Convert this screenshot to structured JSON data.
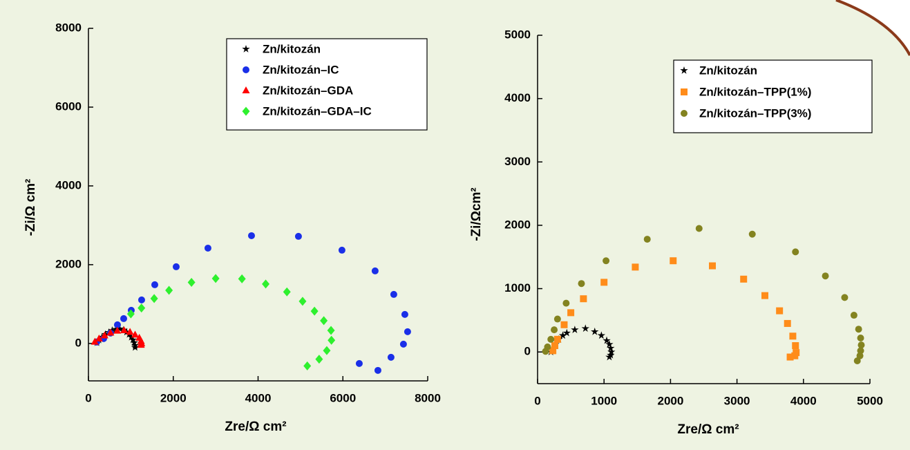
{
  "chart_data": [
    {
      "type": "scatter",
      "xlabel": "Zre/Ω cm²",
      "ylabel": "-Zi/Ω cm²",
      "xlim": [
        0,
        8000
      ],
      "ylim": [
        -950,
        8000
      ],
      "xticks": [
        0,
        2000,
        4000,
        6000,
        8000
      ],
      "yticks": [
        0,
        2000,
        4000,
        6000,
        8000
      ],
      "legend": "upper right",
      "series": [
        {
          "name": "Zn/kitozán",
          "color": "#000000",
          "marker": "star",
          "x": [
            200,
            250,
            320,
            400,
            480,
            560,
            650,
            740,
            830,
            900,
            960,
            1010,
            1050,
            1080,
            1100,
            1100
          ],
          "values": [
            20,
            90,
            160,
            230,
            280,
            330,
            360,
            370,
            340,
            290,
            230,
            160,
            90,
            20,
            -50,
            -100
          ]
        },
        {
          "name": "Zn/kitozán–IC",
          "color": "#1a2fe8",
          "marker": "circle",
          "x": [
            195,
            358,
            521,
            684,
            831,
            1010,
            1254,
            1564,
            2069,
            2818,
            3845,
            4952,
            5978,
            6760,
            7200,
            7461,
            7526,
            7428,
            7135,
            6826,
            6386
          ],
          "values": [
            35,
            123,
            263,
            474,
            631,
            842,
            1105,
            1491,
            1947,
            2420,
            2736,
            2719,
            2368,
            1842,
            1245,
            737,
            298,
            -18,
            -351,
            -684,
            -509
          ]
        },
        {
          "name": "Zn/kitozán–GDA",
          "color": "#ff0000",
          "marker": "triangle",
          "x": [
            150,
            250,
            380,
            520,
            680,
            840,
            980,
            1100,
            1200,
            1240,
            1250,
            1240
          ],
          "values": [
            40,
            120,
            200,
            270,
            320,
            330,
            290,
            220,
            140,
            60,
            0,
            -40
          ]
        },
        {
          "name": "Zn/kitozán–GDA–IC",
          "color": "#2ef02e",
          "marker": "diamond",
          "x": [
            1000,
            1250,
            1550,
            1900,
            2430,
            3000,
            3620,
            4180,
            4680,
            5050,
            5330,
            5550,
            5720,
            5730,
            5620,
            5440,
            5160
          ],
          "values": [
            750,
            900,
            1140,
            1350,
            1550,
            1650,
            1640,
            1510,
            1310,
            1070,
            820,
            580,
            330,
            80,
            -180,
            -400,
            -570
          ]
        }
      ]
    },
    {
      "type": "scatter",
      "xlabel": "Zre/Ω cm²",
      "ylabel": "-Zi/Ωcm²",
      "xlim": [
        0,
        5000
      ],
      "ylim": [
        -500,
        5000
      ],
      "xticks": [
        0,
        1000,
        2000,
        3000,
        4000,
        5000
      ],
      "yticks": [
        0,
        1000,
        2000,
        3000,
        4000,
        5000
      ],
      "legend": "upper right",
      "series": [
        {
          "name": "Zn/kitozán",
          "color": "#000000",
          "marker": "star",
          "x": [
            200,
            230,
            270,
            320,
            380,
            440,
            560,
            720,
            860,
            960,
            1040,
            1080,
            1100,
            1110,
            1100,
            1080
          ],
          "values": [
            0,
            50,
            120,
            200,
            260,
            300,
            350,
            370,
            320,
            260,
            180,
            120,
            60,
            0,
            -50,
            -80
          ]
        },
        {
          "name": "Zn/kitozán–TPP(1%)",
          "color": "#ff8c1a",
          "marker": "square",
          "x": [
            230,
            260,
            300,
            400,
            500,
            690,
            1000,
            1470,
            2040,
            2630,
            3100,
            3420,
            3640,
            3760,
            3840,
            3880,
            3890,
            3870,
            3800
          ],
          "values": [
            20,
            100,
            200,
            430,
            620,
            840,
            1100,
            1340,
            1440,
            1360,
            1150,
            890,
            650,
            450,
            250,
            100,
            -10,
            -60,
            -80
          ]
        },
        {
          "name": "Zn/kitozán–TPP(3%)",
          "color": "#838320",
          "marker": "circle",
          "x": [
            120,
            150,
            200,
            250,
            300,
            430,
            660,
            1030,
            1650,
            2430,
            3230,
            3880,
            4330,
            4620,
            4760,
            4830,
            4860,
            4870,
            4860,
            4850,
            4810
          ],
          "values": [
            10,
            80,
            200,
            350,
            520,
            770,
            1080,
            1440,
            1780,
            1950,
            1860,
            1580,
            1200,
            860,
            580,
            360,
            220,
            110,
            20,
            -60,
            -140
          ]
        }
      ]
    }
  ]
}
